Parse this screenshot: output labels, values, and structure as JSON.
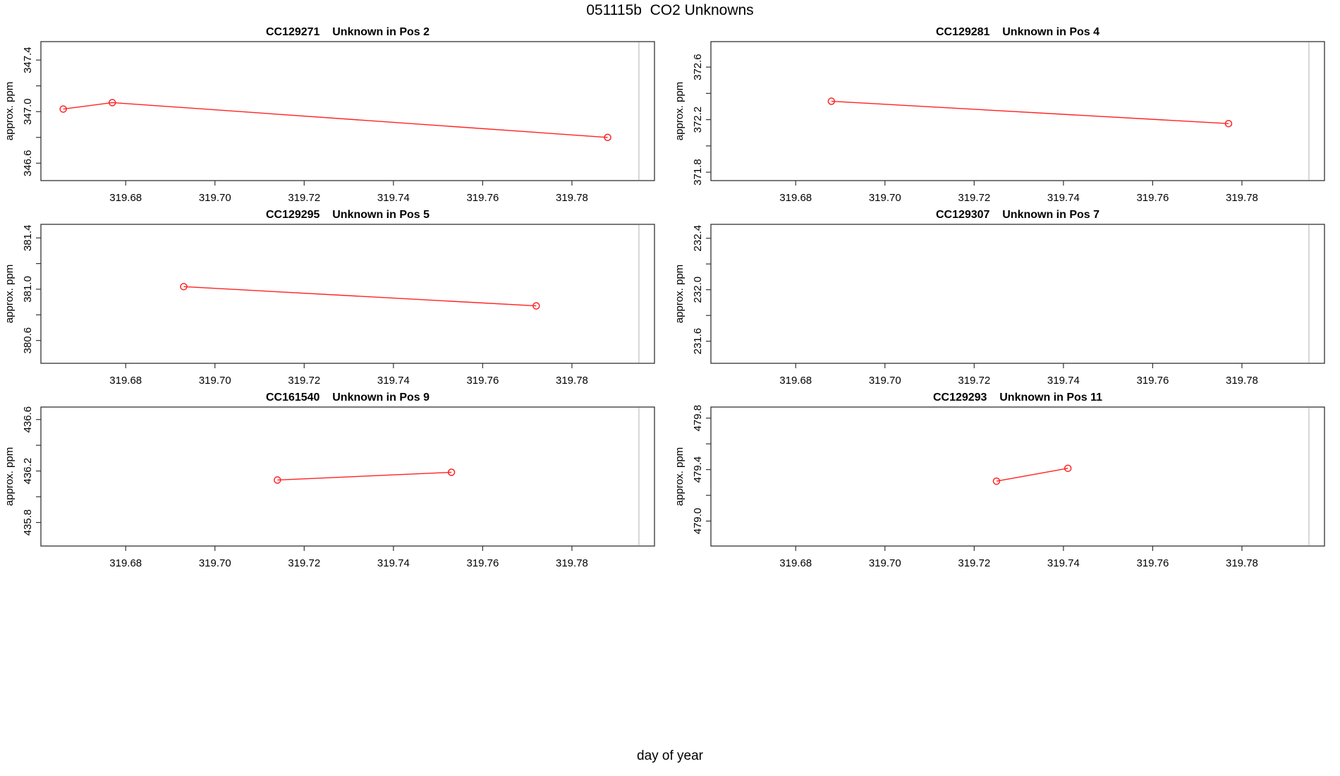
{
  "figure": {
    "title": "051115b  CO2 Unknowns",
    "x_axis_label": "day of year",
    "background_color": "#ffffff",
    "text_color": "#000000"
  },
  "chart_data": {
    "type": "line",
    "title": "051115b  CO2 Unknowns",
    "xlabel": "day of year",
    "ylabel": "approx. ppm",
    "xlim": [
      319.661,
      319.7985
    ],
    "xticks": [
      319.68,
      319.7,
      319.72,
      319.74,
      319.76,
      319.78
    ],
    "xtick_labels": [
      "319.68",
      "319.70",
      "319.72",
      "319.74",
      "319.76",
      "319.78"
    ],
    "reference_line_x": 319.795,
    "series_color": "#ff2222",
    "reference_line_color": "#d6d6d6",
    "frame_color": "#333333",
    "grid": "off",
    "legend": "none",
    "marker": "open-circle",
    "panels": [
      {
        "sample_id": "CC129271",
        "title": "CC129271    Unknown in Pos 2",
        "position_label": "Pos 2",
        "points": [
          [
            319.666,
            347.02
          ],
          [
            319.677,
            347.07
          ],
          [
            319.788,
            346.8
          ]
        ],
        "ylim": [
          346.465,
          347.543
        ],
        "yticks": [
          347.4,
          347.2,
          347.0,
          346.8,
          346.6
        ],
        "ytick_labels": [
          "347.4",
          "",
          "347.0",
          "",
          "346.6"
        ]
      },
      {
        "sample_id": "CC129281",
        "title": "CC129281    Unknown in Pos 4",
        "position_label": "Pos 4",
        "points": [
          [
            319.688,
            372.34
          ],
          [
            319.777,
            372.17
          ]
        ],
        "ylim": [
          371.736,
          372.794
        ],
        "yticks": [
          372.6,
          372.4,
          372.2,
          372.0,
          371.8
        ],
        "ytick_labels": [
          "372.6",
          "",
          "372.2",
          "",
          "371.8"
        ]
      },
      {
        "sample_id": "CC129295",
        "title": "CC129295    Unknown in Pos 5",
        "position_label": "Pos 5",
        "points": [
          [
            319.693,
            381.02
          ],
          [
            319.772,
            380.87
          ]
        ],
        "ylim": [
          380.422,
          381.506
        ],
        "yticks": [
          381.4,
          381.2,
          381.0,
          380.8,
          380.6
        ],
        "ytick_labels": [
          "381.4",
          "",
          "381.0",
          "",
          "380.6"
        ]
      },
      {
        "sample_id": "CC129307",
        "title": "CC129307    Unknown in Pos 7",
        "position_label": "Pos 7",
        "points": [],
        "ylim": [
          231.428,
          232.508
        ],
        "yticks": [
          232.4,
          232.2,
          232.0,
          231.8,
          231.6
        ],
        "ytick_labels": [
          "232.4",
          "",
          "232.0",
          "",
          "231.6"
        ]
      },
      {
        "sample_id": "CC161540",
        "title": "CC161540    Unknown in Pos 9",
        "position_label": "Pos 9",
        "points": [
          [
            319.714,
            436.13
          ],
          [
            319.753,
            436.19
          ]
        ],
        "ylim": [
          435.617,
          436.697
        ],
        "yticks": [
          436.6,
          436.4,
          436.2,
          436.0,
          435.8
        ],
        "ytick_labels": [
          "436.6",
          "",
          "436.2",
          "",
          "435.8"
        ]
      },
      {
        "sample_id": "CC129293",
        "title": "CC129293    Unknown in Pos 11",
        "position_label": "Pos 11",
        "points": [
          [
            319.725,
            479.31
          ],
          [
            319.741,
            479.41
          ]
        ],
        "ylim": [
          478.806,
          479.886
        ],
        "yticks": [
          479.8,
          479.6,
          479.4,
          479.2,
          479.0
        ],
        "ytick_labels": [
          "479.8",
          "",
          "479.4",
          "",
          "479.0"
        ]
      }
    ]
  }
}
